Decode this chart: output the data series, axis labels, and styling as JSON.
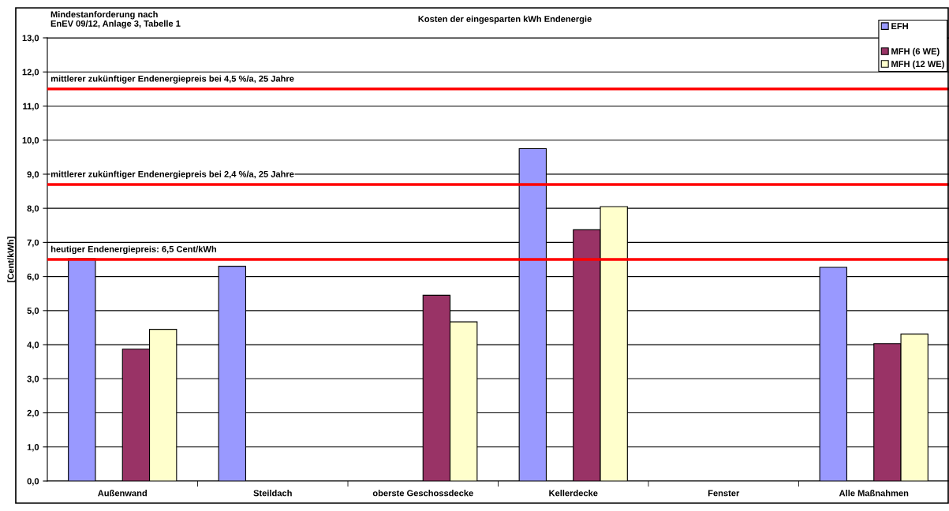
{
  "chart_data": {
    "type": "bar",
    "title": "Kosten der eingesparten kWh Endenergie",
    "ylabel": "[Cent/kWh]",
    "annotations": [
      "Mindestanforderung nach\nEnEV 09/12, Anlage 3, Tabelle 1"
    ],
    "categories": [
      "Außenwand",
      "Steildach",
      "oberste Geschossdecke",
      "Kellerdecke",
      "Fenster",
      "Alle Maßnahmen"
    ],
    "series": [
      {
        "name": "EFH",
        "color": "#9999ff",
        "values": [
          6.52,
          6.3,
          null,
          9.75,
          null,
          6.27
        ]
      },
      {
        "values": [
          null,
          null,
          null,
          null,
          null,
          null
        ]
      },
      {
        "name": "MFH (6 WE)",
        "color": "#993366",
        "values": [
          3.87,
          null,
          5.45,
          7.37,
          null,
          4.03
        ]
      },
      {
        "name": "MFH (12 WE)",
        "color": "#ffffcc",
        "values": [
          4.45,
          null,
          4.67,
          8.05,
          null,
          4.31
        ]
      }
    ],
    "ylim": [
      0,
      13
    ],
    "yticks": [
      {
        "value": 0,
        "label": "0,0"
      },
      {
        "value": 1,
        "label": "1,0"
      },
      {
        "value": 2,
        "label": "2,0"
      },
      {
        "value": 3,
        "label": "3,0"
      },
      {
        "value": 4,
        "label": "4,0"
      },
      {
        "value": 5,
        "label": "5,0"
      },
      {
        "value": 6,
        "label": "6,0"
      },
      {
        "value": 7,
        "label": "7,0"
      },
      {
        "value": 8,
        "label": "8,0"
      },
      {
        "value": 9,
        "label": "9,0"
      },
      {
        "value": 10,
        "label": "10,0"
      },
      {
        "value": 11,
        "label": "11,0"
      },
      {
        "value": 12,
        "label": "12,0"
      },
      {
        "value": 13,
        "label": "13,0"
      }
    ],
    "ref_lines": [
      {
        "axis": "y",
        "value": 11.5,
        "label": "mittlerer zukünftiger Endenergiepreis bei 4,5 %/a, 25 Jahre",
        "color": "#ff0000"
      },
      {
        "axis": "y",
        "value": 8.7,
        "label": "mittlerer zukünftiger Endenergiepreis bei 2,4 %/a, 25 Jahre",
        "color": "#ff0000"
      },
      {
        "axis": "y",
        "value": 6.5,
        "label": "heutiger Endenergiepreis: 6,5 Cent/kWh",
        "color": "#ff0000"
      }
    ],
    "grid": "y",
    "legend": "top right"
  }
}
